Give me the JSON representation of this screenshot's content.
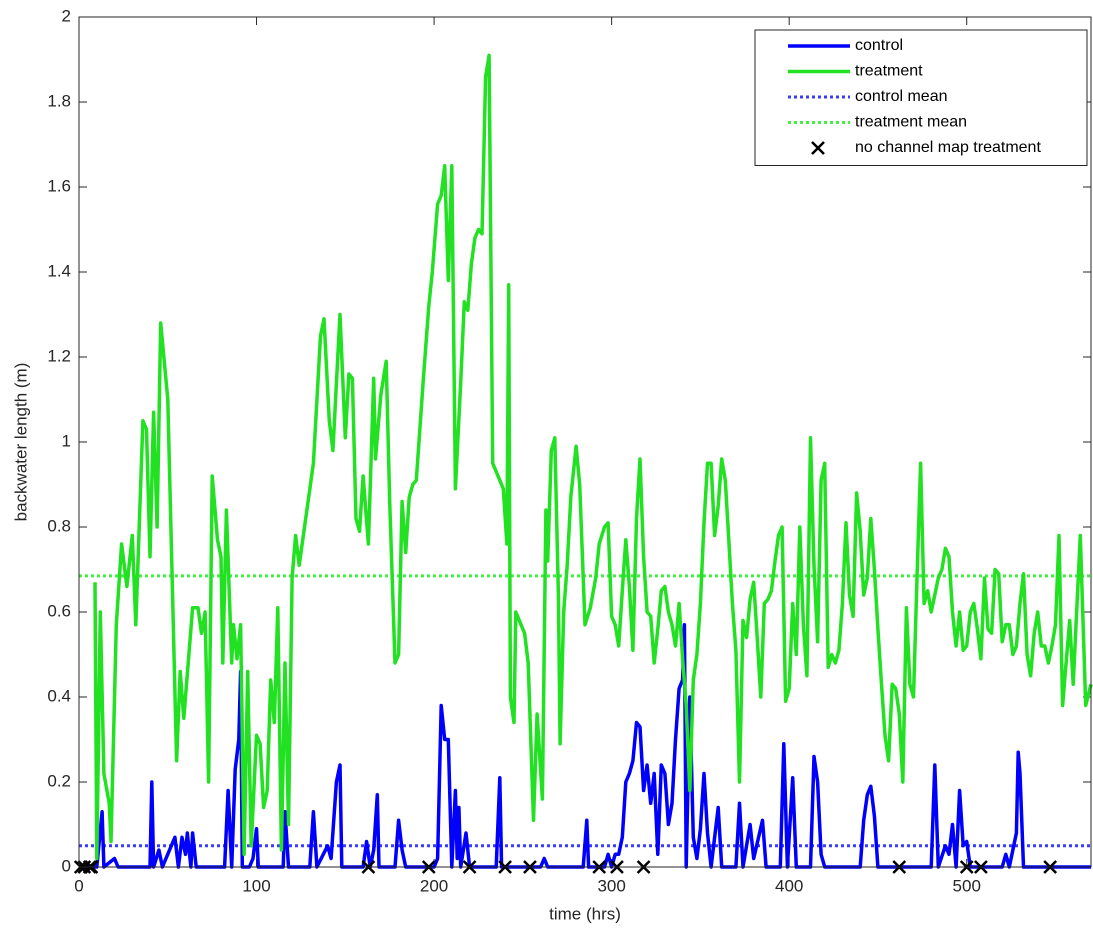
{
  "chart_data": {
    "type": "line",
    "xlabel": "time (hrs)",
    "ylabel": "backwater length (m)",
    "xlim": [
      0,
      570
    ],
    "xticks": [
      0,
      100,
      200,
      300,
      400,
      500
    ],
    "ylim": [
      0,
      2
    ],
    "yticks": [
      0,
      0.2,
      0.4,
      0.6,
      0.8,
      1,
      1.2,
      1.4,
      1.6,
      1.8,
      2
    ],
    "legend": "upper right",
    "series": [
      {
        "name": "control",
        "color": "#0000ff",
        "style": "line",
        "x": [
          0,
          10,
          13,
          14,
          20,
          22,
          40,
          41,
          42,
          45,
          47,
          54,
          56,
          58,
          60,
          61,
          63,
          64,
          66,
          82,
          84,
          86,
          88,
          90,
          91,
          92,
          96,
          98,
          100,
          101,
          115,
          116,
          118,
          130,
          132,
          134,
          140,
          142,
          145,
          147,
          148,
          160,
          162,
          164,
          166,
          168,
          169,
          178,
          180,
          182,
          184,
          200,
          202,
          204,
          206,
          208,
          210,
          212,
          213,
          214,
          215,
          218,
          220,
          235,
          237,
          238,
          260,
          262,
          264,
          284,
          286,
          287,
          296,
          298,
          300,
          302,
          304,
          306,
          308,
          310,
          312,
          314,
          316,
          318,
          320,
          322,
          324,
          326,
          328,
          330,
          332,
          334,
          336,
          338,
          340,
          341,
          342,
          344,
          346,
          348,
          350,
          352,
          354,
          356,
          360,
          362,
          370,
          372,
          374,
          378,
          380,
          385,
          387,
          395,
          397,
          399,
          402,
          404,
          412,
          414,
          416,
          418,
          420,
          440,
          442,
          444,
          446,
          448,
          450,
          480,
          482,
          484,
          488,
          490,
          492,
          494,
          496,
          498,
          500,
          502,
          520,
          522,
          524,
          528,
          529,
          530,
          532,
          570
        ],
        "values": [
          0,
          0,
          0.13,
          0,
          0.02,
          0,
          0,
          0.2,
          0,
          0.04,
          0,
          0.07,
          0,
          0.07,
          0.03,
          0.08,
          0,
          0.08,
          0,
          0,
          0.18,
          0,
          0.23,
          0.3,
          0.46,
          0,
          0,
          0.02,
          0.09,
          0,
          0,
          0.13,
          0,
          0,
          0.13,
          0,
          0.05,
          0.02,
          0.2,
          0.24,
          0,
          0,
          0.06,
          0,
          0.04,
          0.17,
          0,
          0,
          0.11,
          0.04,
          0,
          0,
          0.02,
          0.38,
          0.3,
          0.3,
          0,
          0.18,
          0.02,
          0.14,
          0,
          0.08,
          0,
          0,
          0.21,
          0,
          0,
          0.02,
          0,
          0,
          0.11,
          0,
          0,
          0.03,
          0,
          0.03,
          0.03,
          0.07,
          0.2,
          0.22,
          0.25,
          0.34,
          0.33,
          0.18,
          0.24,
          0.15,
          0.22,
          0.03,
          0.24,
          0.22,
          0.1,
          0.15,
          0.3,
          0.42,
          0.44,
          0.57,
          0,
          0.4,
          0.07,
          0.02,
          0.09,
          0.22,
          0.08,
          0,
          0.14,
          0,
          0,
          0.15,
          0,
          0.1,
          0.02,
          0.11,
          0,
          0,
          0.29,
          0,
          0.21,
          0,
          0,
          0.26,
          0.2,
          0.03,
          0,
          0,
          0.11,
          0.17,
          0.19,
          0.12,
          0,
          0,
          0.24,
          0,
          0.05,
          0.03,
          0.1,
          0,
          0.18,
          0.05,
          0.06,
          0,
          0,
          0.03,
          0,
          0.08,
          0.27,
          0.22,
          0,
          0
        ]
      },
      {
        "name": "treatment",
        "color": "#22e022",
        "style": "line",
        "x": [
          9,
          10,
          12,
          14,
          17,
          18,
          21,
          24,
          27,
          30,
          32,
          36,
          38,
          40,
          42,
          44,
          46,
          50,
          55,
          57,
          59,
          64,
          67,
          69,
          71,
          73,
          75,
          78,
          80,
          81,
          83,
          86,
          87,
          89,
          91,
          93,
          95,
          97,
          100,
          102,
          104,
          106,
          108,
          110,
          112,
          114,
          116,
          118,
          120,
          122,
          124,
          128,
          132,
          136,
          138,
          141,
          143,
          147,
          150,
          152,
          154,
          156,
          158,
          160,
          163,
          166,
          167,
          170,
          173,
          175,
          178,
          180,
          182,
          184,
          186,
          188,
          190,
          194,
          197,
          199,
          202,
          204,
          206,
          208,
          210,
          212,
          215,
          217,
          219,
          221,
          223,
          225,
          227,
          229,
          231,
          233,
          236,
          239,
          241,
          242,
          243,
          245,
          246,
          249,
          251,
          253,
          256,
          258,
          261,
          263,
          264,
          266,
          268,
          270,
          271,
          273,
          275,
          277,
          280,
          282,
          285,
          288,
          291,
          293,
          296,
          298,
          300,
          302,
          304,
          306,
          308,
          310,
          312,
          314,
          316,
          318,
          320,
          322,
          324,
          326,
          328,
          330,
          332,
          334,
          336,
          338,
          340,
          342,
          344,
          346,
          348,
          350,
          352,
          354,
          356,
          358,
          360,
          362,
          364,
          366,
          368,
          370,
          372,
          374,
          376,
          378,
          380,
          382,
          384,
          386,
          388,
          390,
          392,
          394,
          396,
          398,
          400,
          402,
          404,
          406,
          408,
          410,
          412,
          414,
          416,
          418,
          420,
          422,
          424,
          426,
          428,
          430,
          432,
          434,
          436,
          438,
          440,
          442,
          444,
          446,
          448,
          450,
          452,
          454,
          456,
          458,
          460,
          462,
          464,
          466,
          468,
          470,
          472,
          474,
          476,
          478,
          480,
          482,
          484,
          486,
          488,
          490,
          492,
          494,
          496,
          498,
          500,
          502,
          504,
          506,
          508,
          510,
          512,
          514,
          516,
          518,
          520,
          522,
          524,
          526,
          528,
          530,
          532,
          534,
          536,
          538,
          540,
          542,
          544,
          546,
          548,
          550,
          552,
          554,
          556,
          558,
          560,
          564,
          567,
          570
        ],
        "values": [
          0.67,
          0.02,
          0.6,
          0.22,
          0.15,
          0.06,
          0.57,
          0.76,
          0.66,
          0.78,
          0.57,
          1.05,
          1.03,
          0.73,
          1.07,
          0.8,
          1.28,
          1.1,
          0.25,
          0.46,
          0.35,
          0.61,
          0.61,
          0.55,
          0.6,
          0.2,
          0.92,
          0.77,
          0.73,
          0.48,
          0.84,
          0.48,
          0.57,
          0.49,
          0.57,
          0.03,
          0.46,
          0.05,
          0.31,
          0.29,
          0.14,
          0.18,
          0.44,
          0.34,
          0.61,
          0.04,
          0.48,
          0.1,
          0.68,
          0.78,
          0.71,
          0.83,
          0.95,
          1.25,
          1.29,
          1.05,
          0.98,
          1.3,
          1.01,
          1.16,
          1.15,
          0.82,
          0.79,
          0.92,
          0.76,
          1.15,
          0.96,
          1.11,
          1.19,
          0.86,
          0.48,
          0.5,
          0.86,
          0.74,
          0.87,
          0.9,
          0.91,
          1.15,
          1.32,
          1.4,
          1.56,
          1.58,
          1.65,
          1.38,
          1.65,
          0.89,
          1.14,
          1.33,
          1.31,
          1.42,
          1.48,
          1.5,
          1.49,
          1.86,
          1.91,
          0.95,
          0.92,
          0.89,
          0.76,
          1.37,
          0.4,
          0.34,
          0.6,
          0.57,
          0.55,
          0.48,
          0.11,
          0.36,
          0.16,
          0.84,
          0.72,
          0.98,
          1.01,
          0.64,
          0.29,
          0.6,
          0.71,
          0.87,
          0.99,
          0.9,
          0.57,
          0.61,
          0.68,
          0.76,
          0.8,
          0.81,
          0.59,
          0.57,
          0.52,
          0.65,
          0.77,
          0.66,
          0.51,
          0.82,
          0.96,
          0.73,
          0.6,
          0.59,
          0.48,
          0.56,
          0.65,
          0.66,
          0.6,
          0.57,
          0.52,
          0.62,
          0.49,
          0.38,
          0.18,
          0.44,
          0.5,
          0.62,
          0.81,
          0.95,
          0.95,
          0.78,
          0.85,
          0.96,
          0.91,
          0.77,
          0.62,
          0.51,
          0.2,
          0.58,
          0.54,
          0.63,
          0.67,
          0.54,
          0.4,
          0.62,
          0.63,
          0.65,
          0.72,
          0.78,
          0.8,
          0.39,
          0.42,
          0.62,
          0.5,
          0.8,
          0.57,
          0.45,
          1.01,
          0.71,
          0.53,
          0.91,
          0.95,
          0.47,
          0.5,
          0.48,
          0.51,
          0.62,
          0.81,
          0.64,
          0.59,
          0.88,
          0.79,
          0.64,
          0.68,
          0.82,
          0.7,
          0.56,
          0.43,
          0.31,
          0.25,
          0.43,
          0.42,
          0.36,
          0.2,
          0.61,
          0.43,
          0.4,
          0.68,
          0.95,
          0.62,
          0.65,
          0.6,
          0.64,
          0.68,
          0.7,
          0.75,
          0.73,
          0.6,
          0.52,
          0.6,
          0.51,
          0.52,
          0.6,
          0.62,
          0.56,
          0.49,
          0.68,
          0.56,
          0.55,
          0.7,
          0.69,
          0.53,
          0.57,
          0.57,
          0.5,
          0.52,
          0.62,
          0.69,
          0.5,
          0.45,
          0.55,
          0.6,
          0.52,
          0.52,
          0.48,
          0.52,
          0.57,
          0.78,
          0.38,
          0.48,
          0.58,
          0.43,
          0.78,
          0.38,
          0.43
        ]
      },
      {
        "name": "control mean",
        "color": "#3b3bff",
        "style": "hline",
        "value": 0.05
      },
      {
        "name": "treatment mean",
        "color": "#44ee44",
        "style": "hline",
        "value": 0.685
      },
      {
        "name": "no channel map treatment",
        "color": "#000000",
        "style": "marker",
        "x": [
          1,
          3,
          6,
          7,
          163,
          197,
          220,
          240,
          254,
          293,
          303,
          318,
          462,
          500,
          508,
          547
        ],
        "values": [
          0,
          0,
          0,
          0,
          0,
          0,
          0,
          0,
          0,
          0,
          0,
          0,
          0,
          0,
          0,
          0
        ]
      }
    ]
  }
}
